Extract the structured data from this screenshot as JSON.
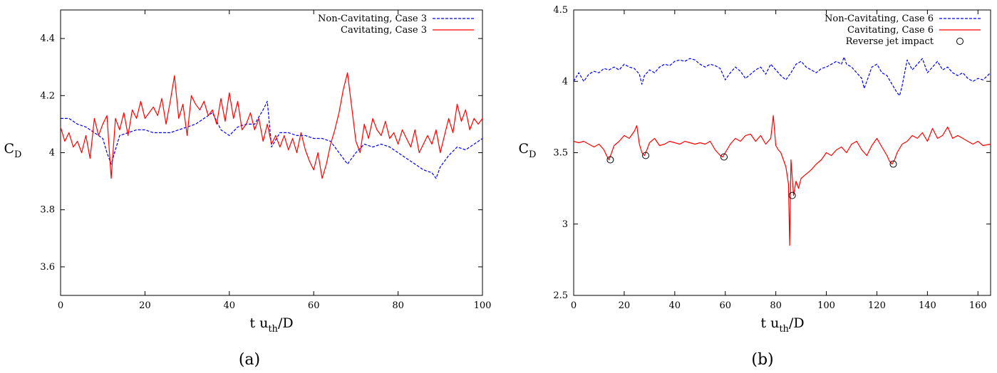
{
  "chart_data": [
    {
      "type": "line",
      "caption": "(a)",
      "xlabel": {
        "main": "t u",
        "sub": "th",
        "tail": "/D"
      },
      "ylabel": {
        "main": "C",
        "sub": "D"
      },
      "xlim": [
        0,
        100
      ],
      "ylim": [
        3.5,
        4.5
      ],
      "xticks": [
        0,
        20,
        40,
        60,
        80,
        100
      ],
      "yticks": [
        3.6,
        3.8,
        4,
        4.2,
        4.4
      ],
      "xtick_labels": [
        "0",
        "20",
        "40",
        "60",
        "80",
        "100"
      ],
      "ytick_labels": [
        "3.6",
        "3.8",
        "4",
        "4.2",
        "4.4"
      ],
      "legend_position": "top-right",
      "series": [
        {
          "name": "Non-Cavitating, Case 3",
          "color": "#0000ff",
          "style": "dashed",
          "x": [
            0,
            2,
            4,
            6,
            8,
            10,
            11,
            12,
            14,
            16,
            18,
            20,
            22,
            24,
            26,
            28,
            30,
            32,
            34,
            36,
            38,
            40,
            42,
            44,
            46,
            48,
            49,
            50,
            52,
            54,
            56,
            58,
            60,
            62,
            64,
            66,
            68,
            70,
            72,
            74,
            76,
            78,
            80,
            82,
            84,
            86,
            88,
            89,
            90,
            92,
            94,
            96,
            98,
            100
          ],
          "y": [
            4.12,
            4.12,
            4.1,
            4.09,
            4.07,
            4.05,
            4.0,
            3.96,
            4.06,
            4.07,
            4.08,
            4.08,
            4.07,
            4.07,
            4.07,
            4.08,
            4.09,
            4.1,
            4.12,
            4.14,
            4.08,
            4.06,
            4.09,
            4.1,
            4.1,
            4.15,
            4.18,
            4.02,
            4.07,
            4.07,
            4.06,
            4.06,
            4.05,
            4.05,
            4.04,
            4.0,
            3.96,
            4.0,
            4.03,
            4.02,
            4.03,
            4.02,
            4.0,
            3.98,
            3.96,
            3.94,
            3.93,
            3.91,
            3.95,
            3.99,
            4.02,
            4.01,
            4.03,
            4.05
          ]
        },
        {
          "name": "Cavitating, Case 3",
          "color": "#ff0000",
          "style": "solid",
          "x": [
            0,
            1,
            2,
            3,
            4,
            5,
            6,
            7,
            8,
            9,
            10,
            11,
            12,
            13,
            14,
            15,
            16,
            17,
            18,
            19,
            20,
            21,
            22,
            23,
            24,
            25,
            26,
            27,
            28,
            29,
            30,
            31,
            32,
            33,
            34,
            35,
            36,
            37,
            38,
            39,
            40,
            41,
            42,
            43,
            44,
            45,
            46,
            47,
            48,
            49,
            50,
            51,
            52,
            53,
            54,
            55,
            56,
            57,
            58,
            59,
            60,
            61,
            62,
            63,
            64,
            65,
            66,
            67,
            68,
            69,
            70,
            71,
            72,
            73,
            74,
            75,
            76,
            77,
            78,
            79,
            80,
            81,
            82,
            83,
            84,
            85,
            86,
            87,
            88,
            89,
            90,
            91,
            92,
            93,
            94,
            95,
            96,
            97,
            98,
            99,
            100
          ],
          "y": [
            4.09,
            4.04,
            4.07,
            4.02,
            4.04,
            4.0,
            4.06,
            3.98,
            4.12,
            4.06,
            4.1,
            4.13,
            3.91,
            4.12,
            4.08,
            4.14,
            4.06,
            4.15,
            4.12,
            4.18,
            4.12,
            4.14,
            4.16,
            4.13,
            4.19,
            4.1,
            4.18,
            4.27,
            4.12,
            4.17,
            4.06,
            4.2,
            4.17,
            4.15,
            4.18,
            4.13,
            4.15,
            4.1,
            4.19,
            4.11,
            4.21,
            4.12,
            4.18,
            4.08,
            4.1,
            4.14,
            4.08,
            4.12,
            4.04,
            4.1,
            4.03,
            4.06,
            4.02,
            4.06,
            4.01,
            4.05,
            4.0,
            4.07,
            4.01,
            3.97,
            3.94,
            4.0,
            3.91,
            3.96,
            4.03,
            4.08,
            4.14,
            4.22,
            4.28,
            4.16,
            4.04,
            4.0,
            4.1,
            4.05,
            4.12,
            4.08,
            4.06,
            4.11,
            4.05,
            4.07,
            4.03,
            4.08,
            4.05,
            4.02,
            4.08,
            4.0,
            4.03,
            4.06,
            4.03,
            4.08,
            4.0,
            4.06,
            4.12,
            4.07,
            4.17,
            4.11,
            4.15,
            4.08,
            4.12,
            4.1,
            4.12
          ]
        }
      ]
    },
    {
      "type": "line",
      "caption": "(b)",
      "xlabel": {
        "main": "t u",
        "sub": "th",
        "tail": "/D"
      },
      "ylabel": {
        "main": "C",
        "sub": "D"
      },
      "xlim": [
        0,
        165
      ],
      "ylim": [
        2.5,
        4.5
      ],
      "xticks": [
        0,
        20,
        40,
        60,
        80,
        100,
        120,
        140,
        160
      ],
      "yticks": [
        2.5,
        3,
        3.5,
        4,
        4.5
      ],
      "xtick_labels": [
        "0",
        "20",
        "40",
        "60",
        "80",
        "100",
        "120",
        "140",
        "160"
      ],
      "ytick_labels": [
        "2.5",
        "3",
        "3.5",
        "4",
        "4.5"
      ],
      "legend_position": "top-right",
      "series": [
        {
          "name": "Non-Cavitating, Case 6",
          "color": "#0000ff",
          "style": "dashed",
          "x": [
            0,
            2,
            4,
            6,
            8,
            10,
            12,
            14,
            16,
            18,
            20,
            22,
            24,
            26,
            27,
            28,
            30,
            32,
            34,
            36,
            38,
            40,
            42,
            44,
            46,
            48,
            50,
            52,
            54,
            56,
            58,
            60,
            62,
            64,
            66,
            68,
            70,
            72,
            74,
            76,
            78,
            80,
            82,
            84,
            86,
            88,
            90,
            92,
            94,
            96,
            98,
            100,
            102,
            104,
            106,
            107,
            108,
            110,
            112,
            114,
            115,
            116,
            118,
            120,
            122,
            124,
            126,
            128,
            129,
            130,
            132,
            134,
            136,
            138,
            140,
            142,
            144,
            146,
            148,
            150,
            152,
            154,
            156,
            158,
            160,
            162,
            165
          ],
          "y": [
            4.0,
            4.06,
            4.0,
            4.05,
            4.07,
            4.06,
            4.09,
            4.08,
            4.1,
            4.08,
            4.12,
            4.1,
            4.09,
            4.05,
            3.98,
            4.04,
            4.08,
            4.06,
            4.1,
            4.12,
            4.11,
            4.14,
            4.15,
            4.14,
            4.16,
            4.15,
            4.12,
            4.1,
            4.12,
            4.11,
            4.09,
            4.01,
            4.06,
            4.1,
            4.07,
            4.02,
            4.05,
            4.08,
            4.1,
            4.05,
            4.12,
            4.08,
            4.04,
            4.01,
            4.06,
            4.12,
            4.14,
            4.1,
            4.08,
            4.06,
            4.09,
            4.1,
            4.12,
            4.14,
            4.12,
            4.17,
            4.12,
            4.1,
            4.06,
            4.02,
            3.95,
            4.0,
            4.1,
            4.12,
            4.06,
            4.04,
            3.98,
            3.92,
            3.9,
            3.97,
            4.15,
            4.08,
            4.12,
            4.16,
            4.06,
            4.1,
            4.14,
            4.08,
            4.1,
            4.06,
            4.04,
            4.06,
            4.02,
            4.0,
            4.02,
            4.01,
            4.06
          ]
        },
        {
          "name": "Cavitating, Case 6",
          "color": "#ff0000",
          "style": "solid",
          "x": [
            0,
            2,
            4,
            6,
            8,
            10,
            12,
            13,
            14,
            15,
            16,
            18,
            20,
            22,
            24,
            25,
            26,
            27,
            28,
            29,
            30,
            32,
            34,
            36,
            38,
            40,
            42,
            44,
            46,
            48,
            50,
            52,
            54,
            56,
            57,
            58,
            59,
            60,
            62,
            64,
            66,
            68,
            70,
            72,
            74,
            76,
            78,
            79,
            80,
            81,
            82,
            83,
            84,
            85,
            85.5,
            86,
            87,
            88,
            89,
            90,
            92,
            94,
            96,
            98,
            100,
            102,
            104,
            106,
            108,
            110,
            112,
            114,
            116,
            118,
            120,
            122,
            124,
            125,
            126,
            127,
            128,
            130,
            132,
            134,
            136,
            138,
            140,
            142,
            144,
            146,
            148,
            150,
            152,
            154,
            156,
            158,
            160,
            162,
            165
          ],
          "y": [
            3.58,
            3.57,
            3.58,
            3.56,
            3.54,
            3.56,
            3.52,
            3.48,
            3.45,
            3.5,
            3.55,
            3.58,
            3.62,
            3.6,
            3.65,
            3.69,
            3.56,
            3.5,
            3.48,
            3.52,
            3.57,
            3.6,
            3.55,
            3.56,
            3.58,
            3.57,
            3.56,
            3.58,
            3.57,
            3.56,
            3.57,
            3.56,
            3.58,
            3.52,
            3.5,
            3.48,
            3.47,
            3.5,
            3.56,
            3.6,
            3.58,
            3.62,
            3.63,
            3.58,
            3.62,
            3.56,
            3.6,
            3.76,
            3.55,
            3.52,
            3.5,
            3.45,
            3.4,
            3.28,
            2.85,
            3.45,
            3.2,
            3.3,
            3.25,
            3.32,
            3.35,
            3.38,
            3.42,
            3.45,
            3.5,
            3.48,
            3.52,
            3.54,
            3.5,
            3.56,
            3.58,
            3.52,
            3.48,
            3.55,
            3.6,
            3.54,
            3.48,
            3.44,
            3.42,
            3.45,
            3.5,
            3.56,
            3.58,
            3.62,
            3.6,
            3.64,
            3.58,
            3.67,
            3.6,
            3.62,
            3.68,
            3.6,
            3.62,
            3.6,
            3.58,
            3.56,
            3.58,
            3.55,
            3.56
          ]
        },
        {
          "name": "Reverse jet impact",
          "type": "scatter",
          "color": "#000000",
          "marker": "circle",
          "x": [
            14.5,
            28.5,
            59.5,
            86.5,
            126.5
          ],
          "y": [
            3.45,
            3.48,
            3.47,
            3.2,
            3.42
          ]
        }
      ]
    }
  ]
}
